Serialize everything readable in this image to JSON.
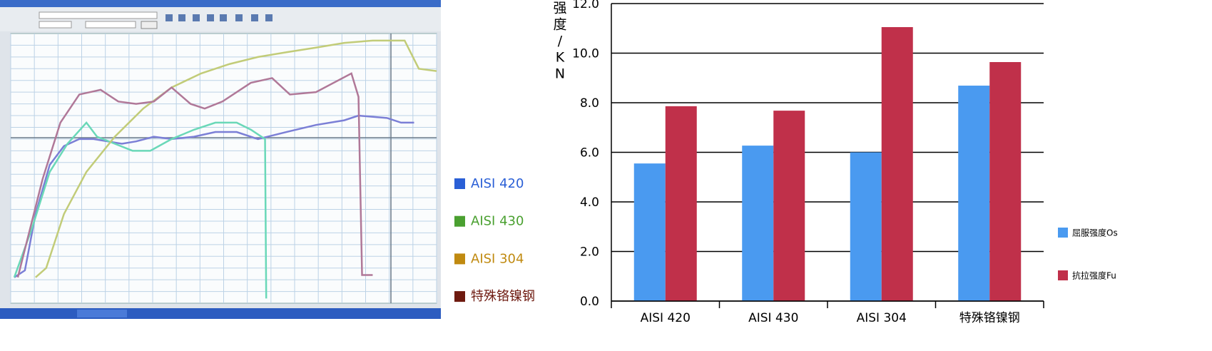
{
  "chart_data": [
    {
      "type": "line",
      "xlim": [
        0,
        36
      ],
      "ylim": [
        0,
        11.5
      ],
      "xticks": [
        0,
        2,
        4,
        6,
        8,
        10,
        12,
        14,
        16,
        18,
        20,
        22,
        24,
        26,
        28,
        30,
        32,
        34,
        36
      ],
      "yticks": [
        0.5,
        1,
        1.5,
        2,
        2.5,
        3,
        3.5,
        4,
        4.5,
        5,
        5.5,
        6,
        6.5,
        7,
        7.5,
        8,
        8.5,
        9,
        9.5,
        10,
        10.5,
        11
      ],
      "grid": true,
      "series": [
        {
          "name": "AISI 420",
          "color": "#7b7fd6",
          "legend_color": "#2a5fd6",
          "x": [
            0.3,
            1.2,
            2.1,
            3.3,
            4.5,
            5.8,
            7.0,
            8.2,
            9.4,
            10.6,
            12.1,
            13.6,
            15.5,
            17.3,
            19.1,
            20.9,
            23.3,
            25.8,
            28.2,
            29.4,
            31.8,
            33.0,
            34.1
          ],
          "values": [
            1.1,
            1.4,
            3.8,
            5.9,
            6.7,
            7.0,
            7.0,
            6.9,
            6.8,
            6.9,
            7.1,
            7.0,
            7.1,
            7.3,
            7.3,
            7.0,
            7.3,
            7.6,
            7.8,
            8.0,
            7.9,
            7.7,
            7.7
          ]
        },
        {
          "name": "AISI 430",
          "color": "#6ad8b8",
          "legend_color": "#4aa030",
          "x": [
            0.3,
            1.8,
            3.3,
            4.8,
            6.4,
            7.3,
            8.8,
            10.3,
            11.8,
            13.6,
            15.5,
            17.3,
            19.1,
            20.3,
            21.5,
            21.6
          ],
          "values": [
            1.1,
            3.2,
            5.6,
            6.8,
            7.7,
            7.1,
            6.8,
            6.5,
            6.5,
            7.0,
            7.4,
            7.7,
            7.7,
            7.4,
            7.0,
            0.2
          ]
        },
        {
          "name": "AISI 304",
          "color": "#c2cc78",
          "legend_color": "#c08a10",
          "x": [
            2.1,
            3.0,
            4.5,
            6.4,
            8.8,
            11.2,
            13.6,
            16.1,
            18.5,
            20.9,
            23.3,
            25.8,
            28.2,
            30.6,
            33.3,
            34.5,
            36
          ],
          "values": [
            1.1,
            1.5,
            3.8,
            5.6,
            7.1,
            8.3,
            9.2,
            9.8,
            10.2,
            10.5,
            10.7,
            10.9,
            11.1,
            11.2,
            11.2,
            10.0,
            9.9
          ]
        },
        {
          "name": "特殊铬镍钢",
          "color": "#b07898",
          "legend_color": "#6e1a10",
          "x": [
            0.6,
            1.5,
            2.7,
            4.2,
            5.8,
            7.6,
            9.1,
            10.6,
            12.1,
            13.6,
            15.2,
            16.4,
            17.9,
            20.3,
            22.1,
            23.6,
            25.8,
            28.8,
            29.4,
            29.7,
            30.6
          ],
          "values": [
            1.1,
            2.9,
            5.3,
            7.7,
            8.9,
            9.1,
            8.6,
            8.5,
            8.6,
            9.2,
            8.5,
            8.3,
            8.6,
            9.4,
            9.6,
            8.9,
            9.0,
            9.8,
            8.8,
            1.2,
            1.2
          ]
        }
      ]
    },
    {
      "type": "bar",
      "ylabel": "强度/KN",
      "categories": [
        "AISI 420",
        "AISI 430",
        "AISI 304",
        "特殊铬镍钢"
      ],
      "ylim": [
        0,
        12
      ],
      "yticks": [
        {
          "value": 0,
          "label": "0.0"
        },
        {
          "value": 2,
          "label": "2.0"
        },
        {
          "value": 4,
          "label": "4.0"
        },
        {
          "value": 6,
          "label": "6.0"
        },
        {
          "value": 8,
          "label": "8.0"
        },
        {
          "value": 10,
          "label": "10.0"
        },
        {
          "value": 12,
          "label": "12.0"
        }
      ],
      "grid": true,
      "series": [
        {
          "name": "屈服强度Os",
          "color": "#4a9af0",
          "values": [
            5.55,
            6.27,
            6.0,
            8.69
          ]
        },
        {
          "name": "抗拉强度Fu",
          "color": "#c0304a",
          "values": [
            7.86,
            7.68,
            11.05,
            9.64
          ]
        }
      ]
    }
  ]
}
